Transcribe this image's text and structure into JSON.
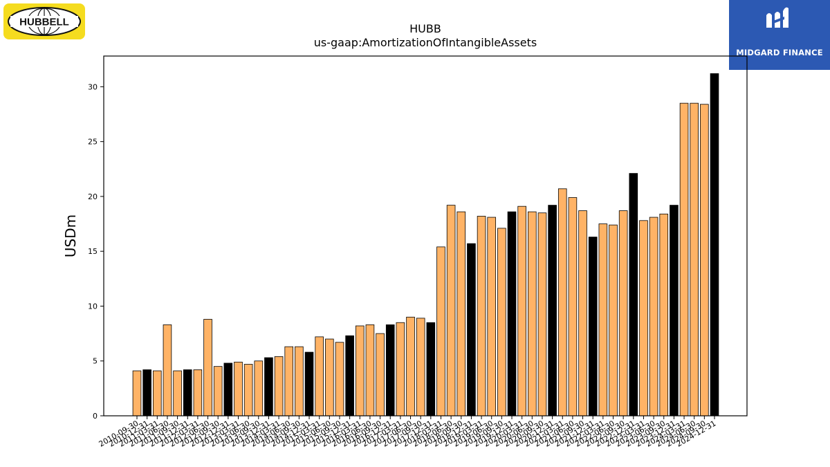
{
  "logos": {
    "left": {
      "text": "HUBBELL"
    },
    "right": {
      "text": "MIDGARD FINANCE"
    }
  },
  "chart_data": {
    "type": "bar",
    "title": "HUBB",
    "subtitle": "us-gaap:AmortizationOfIntangibleAssets",
    "ylabel": "USDm",
    "xlabel": "",
    "ylim": [
      0,
      32.8
    ],
    "yticks": [
      0,
      5,
      10,
      15,
      20,
      25,
      30
    ],
    "grid": false,
    "legend": "none",
    "colors": {
      "quarter": "#ffb366",
      "annual": "#000000",
      "edge": "#000000"
    },
    "categories": [
      "2010-09-30",
      "2010-12-31",
      "2011-03-31",
      "2011-06-30",
      "2011-09-30",
      "2011-12-31",
      "2012-03-31",
      "2012-06-30",
      "2012-09-30",
      "2012-12-31",
      "2013-03-31",
      "2013-06-30",
      "2013-09-30",
      "2013-12-31",
      "2014-03-31",
      "2014-06-30",
      "2014-09-30",
      "2014-12-31",
      "2015-03-31",
      "2015-06-30",
      "2015-09-30",
      "2015-12-31",
      "2016-03-31",
      "2016-06-30",
      "2016-09-30",
      "2016-12-31",
      "2017-03-31",
      "2017-06-30",
      "2017-09-30",
      "2017-12-31",
      "2018-03-31",
      "2018-06-30",
      "2018-09-30",
      "2018-12-31",
      "2019-03-31",
      "2019-06-30",
      "2019-09-30",
      "2019-12-31",
      "2020-03-31",
      "2020-06-30",
      "2020-09-30",
      "2020-12-31",
      "2021-03-31",
      "2021-06-30",
      "2021-09-30",
      "2021-12-31",
      "2022-03-31",
      "2022-06-30",
      "2022-09-30",
      "2022-12-31",
      "2023-03-31",
      "2023-06-30",
      "2023-09-30",
      "2023-12-31",
      "2024-03-31",
      "2024-06-30",
      "2024-09-30",
      "2024-12-31"
    ],
    "values": [
      4.1,
      4.2,
      4.1,
      8.3,
      4.1,
      4.2,
      4.2,
      8.8,
      4.5,
      4.8,
      4.9,
      4.7,
      5.0,
      5.3,
      5.4,
      6.3,
      6.3,
      5.8,
      7.2,
      7.0,
      6.7,
      7.3,
      8.2,
      8.3,
      7.5,
      8.3,
      8.5,
      9.0,
      8.9,
      8.5,
      15.4,
      19.2,
      18.6,
      15.7,
      18.2,
      18.1,
      17.1,
      18.6,
      19.1,
      18.6,
      18.5,
      19.2,
      20.7,
      19.9,
      18.7,
      16.3,
      17.5,
      17.4,
      18.7,
      22.1,
      17.8,
      18.1,
      18.4,
      19.2,
      28.5,
      28.5,
      28.4,
      31.2
    ],
    "annual": [
      false,
      true,
      false,
      false,
      false,
      true,
      false,
      false,
      false,
      true,
      false,
      false,
      false,
      true,
      false,
      false,
      false,
      true,
      false,
      false,
      false,
      true,
      false,
      false,
      false,
      true,
      false,
      false,
      false,
      true,
      false,
      false,
      false,
      true,
      false,
      false,
      false,
      true,
      false,
      false,
      false,
      true,
      false,
      false,
      false,
      true,
      false,
      false,
      false,
      true,
      false,
      false,
      false,
      true,
      false,
      false,
      false,
      true
    ]
  }
}
